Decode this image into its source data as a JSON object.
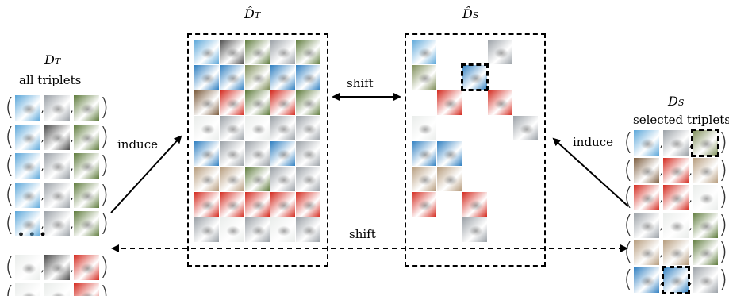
{
  "labels": {
    "dt_left": {
      "main": "D",
      "sub": "T"
    },
    "all_triplets": "all triplets",
    "dt_hat": {
      "main": "D̂",
      "sub": "T"
    },
    "ds_hat": {
      "main": "D̂",
      "sub": "S"
    },
    "ds_right": {
      "main": "D",
      "sub": "S"
    },
    "selected_triplets": "selected triplets",
    "induce_left": "induce",
    "induce_right": "induce",
    "shift_mid": "shift",
    "shift_bottom": "shift",
    "ellipsis": "• • •"
  },
  "colors": {
    "sky": "#5aa6d9",
    "darkbird": "#4a4a4a",
    "greenbg": "#5d7a3a",
    "blue": "#2f7fc1",
    "red": "#d42a1f",
    "grey": "#9aa0a6",
    "white": "#e9ecea",
    "olive": "#7c8c55",
    "tan": "#b59a7a",
    "brown": "#7b5b3c"
  },
  "dt_hat_grid": [
    [
      "sky",
      "darkbird",
      "greenbg",
      "grey",
      "greenbg"
    ],
    [
      "blue",
      "blue",
      "olive",
      "blue",
      "blue"
    ],
    [
      "brown",
      "red",
      "greenbg",
      "red",
      "greenbg"
    ],
    [
      "white",
      "grey",
      "white",
      "grey",
      "grey"
    ],
    [
      "blue",
      "grey",
      "grey",
      "blue",
      "grey"
    ],
    [
      "tan",
      "tan",
      "greenbg",
      "grey",
      "grey"
    ],
    [
      "red",
      "red",
      "red",
      "red",
      "red"
    ],
    [
      "grey",
      "white",
      "grey",
      "white",
      "grey"
    ]
  ],
  "ds_hat_grid": [
    [
      "sky",
      "",
      "",
      "grey",
      ""
    ],
    [
      "olive",
      "",
      "blue*",
      "",
      ""
    ],
    [
      "",
      "red",
      "",
      "red",
      ""
    ],
    [
      "white",
      "",
      "",
      "",
      "grey"
    ],
    [
      "blue",
      "blue",
      "",
      "",
      ""
    ],
    [
      "tan",
      "tan",
      "",
      "",
      ""
    ],
    [
      "red",
      "",
      "red",
      "",
      ""
    ],
    [
      "",
      "",
      "grey",
      "",
      ""
    ]
  ],
  "all_triplets": [
    [
      "sky",
      "grey",
      "greenbg"
    ],
    [
      "sky",
      "darkbird",
      "greenbg"
    ],
    [
      "sky",
      "grey",
      "greenbg"
    ],
    [
      "sky",
      "grey",
      "greenbg"
    ],
    [
      "sky",
      "grey",
      "greenbg"
    ],
    [
      "white",
      "darkbird",
      "red"
    ],
    [
      "white",
      "white",
      "red"
    ]
  ],
  "selected_triplets": [
    [
      "sky",
      "grey",
      "olive*"
    ],
    [
      "brown",
      "red",
      "tan"
    ],
    [
      "red",
      "red",
      "white"
    ],
    [
      "grey",
      "white",
      "greenbg"
    ],
    [
      "tan",
      "tan",
      "greenbg"
    ],
    [
      "blue",
      "blue*",
      "grey"
    ]
  ]
}
